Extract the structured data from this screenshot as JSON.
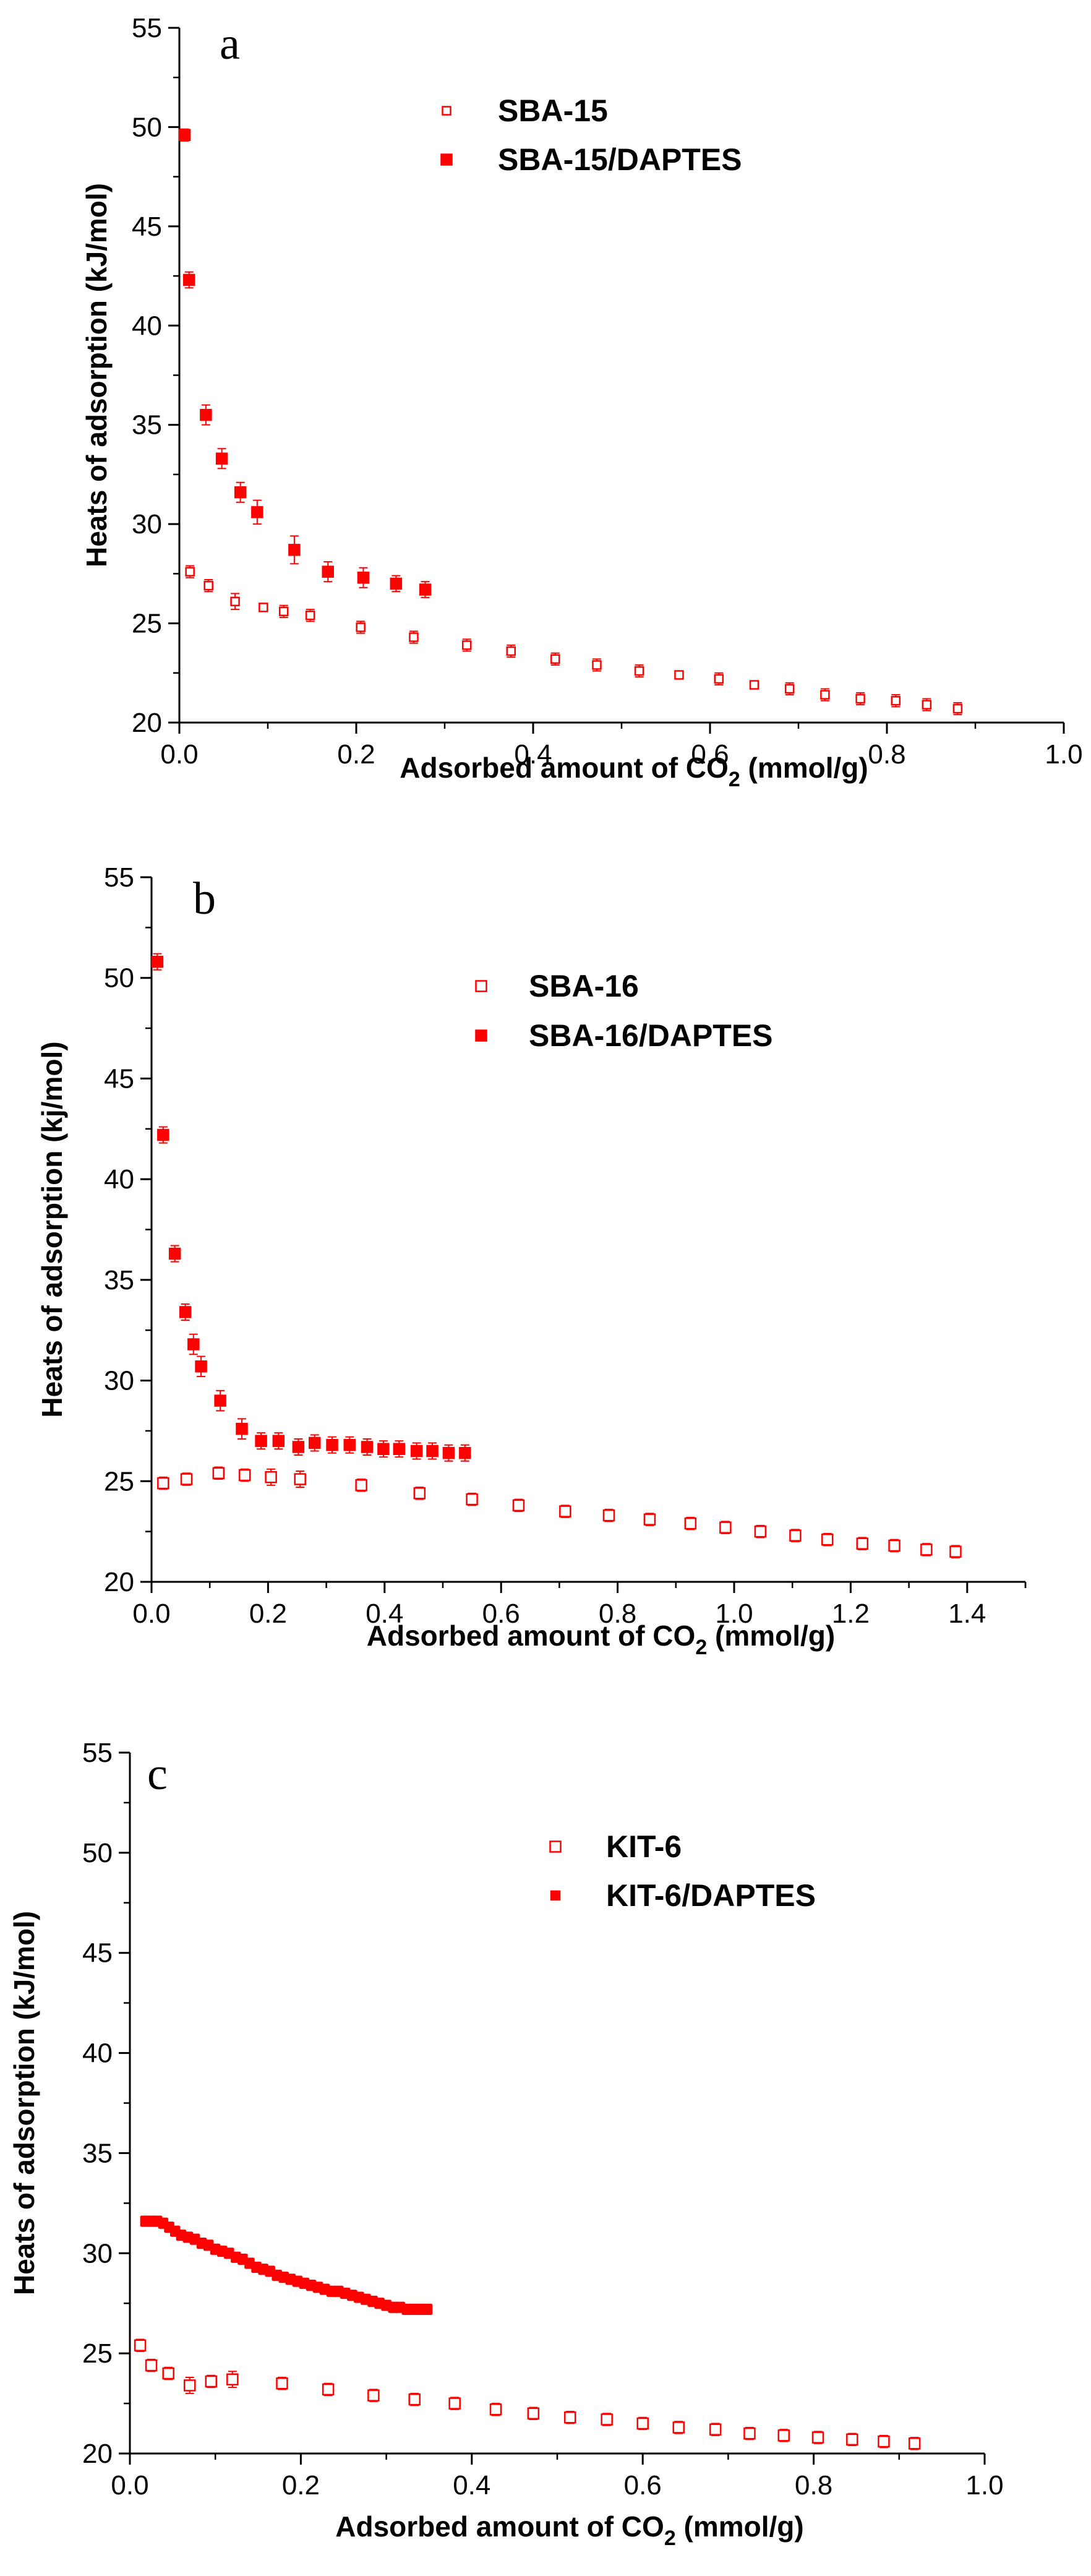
{
  "colors": {
    "series": "#ff0000",
    "axis": "#000000"
  },
  "chart_data": [
    {
      "type": "scatter",
      "panel_label": "a",
      "xlabel": "Adsorbed amount of CO",
      "xlabel_sub": "2",
      "xlabel_tail": " (mmol/g)",
      "ylabel": "Heats of adsorption (kJ/mol)",
      "xlim": [
        0,
        1.0
      ],
      "ylim": [
        20,
        55
      ],
      "xticks": [
        0.0,
        0.2,
        0.4,
        0.6,
        0.8,
        1.0
      ],
      "xtick_labels": [
        "0.0",
        "0.2",
        "0.4",
        "0.6",
        "0.8",
        "1.0"
      ],
      "yticks": [
        20,
        25,
        30,
        35,
        40,
        45,
        50,
        55
      ],
      "ytick_labels": [
        "20",
        "25",
        "30",
        "35",
        "40",
        "45",
        "50",
        "55"
      ],
      "legend": [
        "SBA-15",
        "SBA-15/DAPTES"
      ],
      "series": [
        {
          "name": "SBA-15",
          "marker": "open-small",
          "x": [
            0.012,
            0.033,
            0.063,
            0.095,
            0.118,
            0.148,
            0.205,
            0.265,
            0.325,
            0.375,
            0.425,
            0.472,
            0.52,
            0.565,
            0.61,
            0.65,
            0.69,
            0.73,
            0.77,
            0.81,
            0.845,
            0.88
          ],
          "y": [
            27.6,
            26.9,
            26.1,
            25.8,
            25.6,
            25.4,
            24.8,
            24.3,
            23.9,
            23.6,
            23.2,
            22.9,
            22.6,
            22.4,
            22.2,
            21.9,
            21.7,
            21.4,
            21.2,
            21.1,
            20.9,
            20.7
          ],
          "err": [
            0.3,
            0.3,
            0.4,
            0.2,
            0.3,
            0.3,
            0.3,
            0.3,
            0.3,
            0.3,
            0.3,
            0.3,
            0.3,
            0.2,
            0.3,
            0.2,
            0.3,
            0.3,
            0.3,
            0.3,
            0.3,
            0.3
          ]
        },
        {
          "name": "SBA-15/DAPTES",
          "marker": "filled",
          "x": [
            0.006,
            0.011,
            0.03,
            0.048,
            0.069,
            0.088,
            0.13,
            0.168,
            0.208,
            0.245,
            0.278
          ],
          "y": [
            49.6,
            42.3,
            35.5,
            33.3,
            31.6,
            30.6,
            28.7,
            27.6,
            27.3,
            27.0,
            26.7
          ],
          "err": [
            0.3,
            0.4,
            0.5,
            0.5,
            0.5,
            0.6,
            0.7,
            0.5,
            0.5,
            0.4,
            0.4
          ]
        }
      ]
    },
    {
      "type": "scatter",
      "panel_label": "b",
      "xlabel": "Adsorbed amount of CO",
      "xlabel_sub": "2",
      "xlabel_tail": " (mmol/g)",
      "ylabel": "Heats of adsorption (kj/mol)",
      "xlim": [
        0,
        1.5
      ],
      "ylim": [
        20,
        55
      ],
      "xticks": [
        0.0,
        0.2,
        0.4,
        0.6,
        0.8,
        1.0,
        1.2,
        1.4
      ],
      "xtick_labels": [
        "0.0",
        "0.2",
        "0.4",
        "0.6",
        "0.8",
        "1.0",
        "1.2",
        "1.4"
      ],
      "yticks": [
        20,
        25,
        30,
        35,
        40,
        45,
        50,
        55
      ],
      "ytick_labels": [
        "20",
        "25",
        "30",
        "35",
        "40",
        "45",
        "50",
        "55"
      ],
      "legend": [
        "SBA-16",
        "SBA-16/DAPTES"
      ],
      "series": [
        {
          "name": "SBA-16",
          "marker": "open",
          "x": [
            0.02,
            0.06,
            0.115,
            0.16,
            0.205,
            0.255,
            0.36,
            0.46,
            0.55,
            0.63,
            0.71,
            0.785,
            0.855,
            0.925,
            0.985,
            1.045,
            1.105,
            1.16,
            1.22,
            1.275,
            1.33,
            1.38
          ],
          "y": [
            24.9,
            25.1,
            25.4,
            25.3,
            25.2,
            25.1,
            24.8,
            24.4,
            24.1,
            23.8,
            23.5,
            23.3,
            23.1,
            22.9,
            22.7,
            22.5,
            22.3,
            22.1,
            21.9,
            21.8,
            21.6,
            21.5
          ],
          "err": [
            0.3,
            0.3,
            0.3,
            0.3,
            0.4,
            0.4,
            0.3,
            0.3,
            0.3,
            0.3,
            0.3,
            0.3,
            0.3,
            0.3,
            0.3,
            0.3,
            0.3,
            0.3,
            0.3,
            0.3,
            0.3,
            0.3
          ]
        },
        {
          "name": "SBA-16/DAPTES",
          "marker": "filled",
          "x": [
            0.01,
            0.02,
            0.04,
            0.058,
            0.072,
            0.085,
            0.118,
            0.155,
            0.188,
            0.218,
            0.252,
            0.28,
            0.31,
            0.34,
            0.37,
            0.398,
            0.425,
            0.455,
            0.482,
            0.51,
            0.538
          ],
          "y": [
            50.8,
            42.2,
            36.3,
            33.4,
            31.8,
            30.7,
            29.0,
            27.6,
            27.0,
            27.0,
            26.7,
            26.9,
            26.8,
            26.8,
            26.7,
            26.6,
            26.6,
            26.5,
            26.5,
            26.4,
            26.4
          ],
          "err": [
            0.4,
            0.4,
            0.4,
            0.4,
            0.5,
            0.5,
            0.5,
            0.5,
            0.4,
            0.4,
            0.4,
            0.4,
            0.4,
            0.4,
            0.4,
            0.4,
            0.4,
            0.4,
            0.4,
            0.4,
            0.4
          ]
        }
      ]
    },
    {
      "type": "scatter",
      "panel_label": "c",
      "xlabel": "Adsorbed amount of CO",
      "xlabel_sub": "2",
      "xlabel_tail": " (mmol/g)",
      "ylabel": "Heats of adsorption (kJ/mol)",
      "xlim": [
        0,
        1.0
      ],
      "ylim": [
        20,
        55
      ],
      "xticks": [
        0.0,
        0.2,
        0.4,
        0.6,
        0.8,
        1.0
      ],
      "xtick_labels": [
        "0.0",
        "0.2",
        "0.4",
        "0.6",
        "0.8",
        "1.0"
      ],
      "yticks": [
        20,
        25,
        30,
        35,
        40,
        45,
        50,
        55
      ],
      "ytick_labels": [
        "20",
        "25",
        "30",
        "35",
        "40",
        "45",
        "50",
        "55"
      ],
      "legend": [
        "KIT-6",
        "KIT-6/DAPTES"
      ],
      "series": [
        {
          "name": "KIT-6",
          "marker": "open",
          "x": [
            0.012,
            0.025,
            0.045,
            0.07,
            0.095,
            0.12,
            0.178,
            0.232,
            0.285,
            0.333,
            0.38,
            0.428,
            0.472,
            0.515,
            0.558,
            0.6,
            0.642,
            0.685,
            0.725,
            0.765,
            0.805,
            0.845,
            0.882,
            0.918
          ],
          "y": [
            25.4,
            24.4,
            24.0,
            23.4,
            23.6,
            23.7,
            23.5,
            23.2,
            22.9,
            22.7,
            22.5,
            22.2,
            22.0,
            21.8,
            21.7,
            21.5,
            21.3,
            21.2,
            21.0,
            20.9,
            20.8,
            20.7,
            20.6,
            20.5
          ],
          "err": [
            0.3,
            0.3,
            0.3,
            0.4,
            0.3,
            0.4,
            0.3,
            0.3,
            0.3,
            0.3,
            0.3,
            0.3,
            0.3,
            0.3,
            0.3,
            0.3,
            0.3,
            0.3,
            0.3,
            0.3,
            0.3,
            0.3,
            0.3,
            0.3
          ]
        },
        {
          "name": "KIT-6/DAPTES",
          "marker": "filled-small",
          "x": [
            0.018,
            0.025,
            0.032,
            0.039,
            0.046,
            0.053,
            0.06,
            0.068,
            0.076,
            0.084,
            0.092,
            0.1,
            0.108,
            0.116,
            0.124,
            0.132,
            0.14,
            0.148,
            0.156,
            0.164,
            0.172,
            0.18,
            0.188,
            0.196,
            0.204,
            0.212,
            0.22,
            0.228,
            0.236,
            0.244,
            0.252,
            0.26,
            0.268,
            0.276,
            0.284,
            0.292,
            0.3,
            0.308,
            0.316,
            0.324,
            0.332,
            0.34,
            0.348
          ],
          "y": [
            31.6,
            31.6,
            31.6,
            31.5,
            31.3,
            31.1,
            30.9,
            30.8,
            30.7,
            30.5,
            30.4,
            30.2,
            30.1,
            30.0,
            29.8,
            29.7,
            29.5,
            29.3,
            29.2,
            29.1,
            28.9,
            28.8,
            28.7,
            28.6,
            28.5,
            28.4,
            28.3,
            28.2,
            28.1,
            28.1,
            28.0,
            27.9,
            27.8,
            27.7,
            27.6,
            27.5,
            27.4,
            27.3,
            27.3,
            27.2,
            27.2,
            27.2,
            27.2
          ],
          "err": [
            0.25,
            0.25,
            0.25,
            0.25,
            0.25,
            0.25,
            0.25,
            0.25,
            0.25,
            0.25,
            0.25,
            0.25,
            0.25,
            0.25,
            0.25,
            0.25,
            0.25,
            0.25,
            0.25,
            0.25,
            0.25,
            0.25,
            0.25,
            0.25,
            0.25,
            0.25,
            0.25,
            0.25,
            0.25,
            0.25,
            0.25,
            0.25,
            0.25,
            0.25,
            0.25,
            0.25,
            0.25,
            0.25,
            0.25,
            0.25,
            0.25,
            0.25,
            0.25
          ]
        }
      ]
    }
  ]
}
